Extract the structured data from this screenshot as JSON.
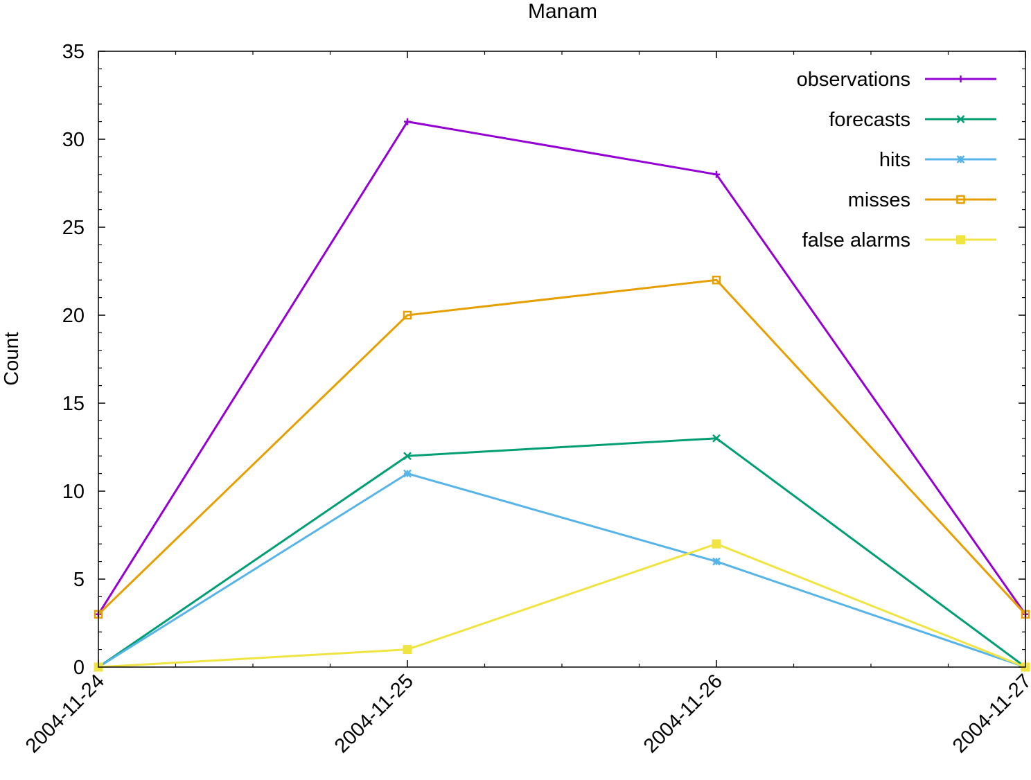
{
  "chart_data": {
    "type": "line",
    "title": "Manam",
    "xlabel": "",
    "ylabel": "Count",
    "x": [
      "2004-11-24",
      "2004-11-25",
      "2004-11-26",
      "2004-11-27"
    ],
    "ylim": [
      0,
      35
    ],
    "yticks": [
      0,
      5,
      10,
      15,
      20,
      25,
      30,
      35
    ],
    "grid": false,
    "legend_position": "top-right",
    "series": [
      {
        "name": "observations",
        "color": "#9400d3",
        "marker": "plus",
        "values": [
          3,
          31,
          28,
          3
        ]
      },
      {
        "name": "forecasts",
        "color": "#009e73",
        "marker": "cross",
        "values": [
          0,
          12,
          13,
          0
        ]
      },
      {
        "name": "hits",
        "color": "#56b4e9",
        "marker": "star",
        "values": [
          0,
          11,
          6,
          0
        ]
      },
      {
        "name": "misses",
        "color": "#e69f00",
        "marker": "open-square",
        "values": [
          3,
          20,
          22,
          3
        ]
      },
      {
        "name": "false alarms",
        "color": "#f0e442",
        "marker": "filled-square",
        "values": [
          0,
          1,
          7,
          0
        ]
      }
    ]
  }
}
